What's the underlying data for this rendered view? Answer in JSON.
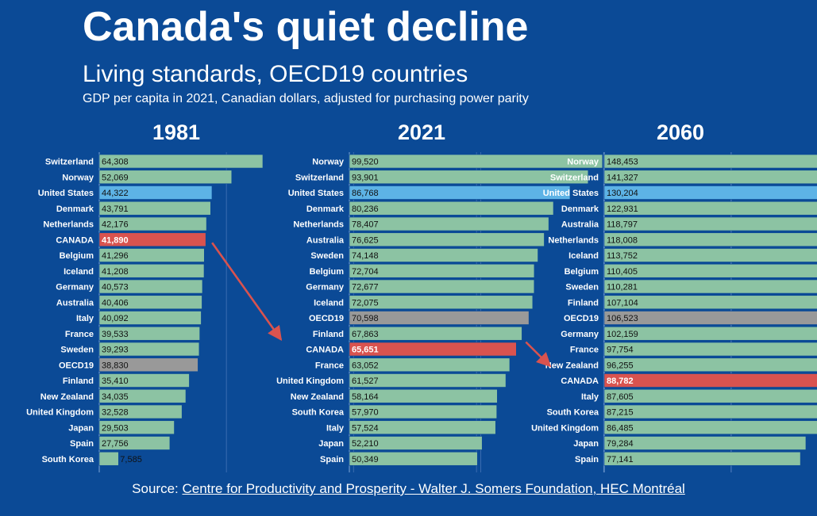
{
  "header": {
    "title": "Canada's quiet decline",
    "subtitle": "Living standards, OECD19 countries",
    "note": "GDP per capita in 2021, Canadian dollars, adjusted for purchasing power parity"
  },
  "footer": {
    "source_label": "Source:",
    "source_link": "Centre for Productivity and Prosperity - Walter J. Somers Foundation, HEC Montréal"
  },
  "colors": {
    "background": "#0b4a96",
    "bar_default": "#8cc3a3",
    "bar_us": "#5db3e6",
    "bar_canada": "#d9534f",
    "bar_oecd": "#999999",
    "arrow": "#d9534f"
  },
  "chart_data": [
    {
      "type": "bar",
      "orientation": "horizontal",
      "title": "1981",
      "xlim": [
        0,
        160000
      ],
      "grid": true,
      "categories": [
        "Switzerland",
        "Norway",
        "United States",
        "Denmark",
        "Netherlands",
        "CANADA",
        "Belgium",
        "Iceland",
        "Germany",
        "Australia",
        "Italy",
        "France",
        "Sweden",
        "OECD19",
        "Finland",
        "New Zealand",
        "United Kingdom",
        "Japan",
        "Spain",
        "South Korea"
      ],
      "values": [
        64308,
        52069,
        44322,
        43791,
        42176,
        41890,
        41296,
        41208,
        40573,
        40406,
        40092,
        39533,
        39293,
        38830,
        35410,
        34035,
        32528,
        29503,
        27756,
        7585
      ],
      "labels": [
        "64,308",
        "52,069",
        "44,322",
        "43,791",
        "42,176",
        "41,890",
        "41,296",
        "41,208",
        "40,573",
        "40,406",
        "40,092",
        "39,533",
        "39,293",
        "38,830",
        "35,410",
        "34,035",
        "32,528",
        "29,503",
        "27,756",
        "7,585"
      ]
    },
    {
      "type": "bar",
      "orientation": "horizontal",
      "title": "2021",
      "xlim": [
        0,
        160000
      ],
      "grid": true,
      "categories": [
        "Norway",
        "Switzerland",
        "United States",
        "Denmark",
        "Netherlands",
        "Australia",
        "Sweden",
        "Belgium",
        "Germany",
        "Iceland",
        "OECD19",
        "Finland",
        "CANADA",
        "France",
        "United Kingdom",
        "New Zealand",
        "South Korea",
        "Italy",
        "Japan",
        "Spain"
      ],
      "values": [
        99520,
        93901,
        86768,
        80236,
        78407,
        76625,
        74148,
        72704,
        72677,
        72075,
        70598,
        67863,
        65651,
        63052,
        61527,
        58164,
        57970,
        57524,
        52210,
        50349
      ],
      "labels": [
        "99,520",
        "93,901",
        "86,768",
        "80,236",
        "78,407",
        "76,625",
        "74,148",
        "72,704",
        "72,677",
        "72,075",
        "70,598",
        "67,863",
        "65,651",
        "63,052",
        "61,527",
        "58,164",
        "57,970",
        "57,524",
        "52,210",
        "50,349"
      ]
    },
    {
      "type": "bar",
      "orientation": "horizontal",
      "title": "2060",
      "xlim": [
        0,
        160000
      ],
      "grid": true,
      "categories": [
        "Norway",
        "Switzerland",
        "United States",
        "Denmark",
        "Australia",
        "Netherlands",
        "Iceland",
        "Belgium",
        "Sweden",
        "Finland",
        "OECD19",
        "Germany",
        "France",
        "New Zealand",
        "CANADA",
        "Italy",
        "South Korea",
        "United Kingdom",
        "Japan",
        "Spain"
      ],
      "values": [
        148453,
        141327,
        130204,
        122931,
        118797,
        118008,
        113752,
        110405,
        110281,
        107104,
        106523,
        102159,
        97754,
        96255,
        88782,
        87605,
        87215,
        86485,
        79284,
        77141
      ],
      "labels": [
        "148,453",
        "141,327",
        "130,204",
        "122,931",
        "118,797",
        "118,008",
        "113,752",
        "110,405",
        "110,281",
        "107,104",
        "106,523",
        "102,159",
        "97,754",
        "96,255",
        "88,782",
        "87,605",
        "87,215",
        "86,485",
        "79,284",
        "77,141"
      ]
    }
  ]
}
